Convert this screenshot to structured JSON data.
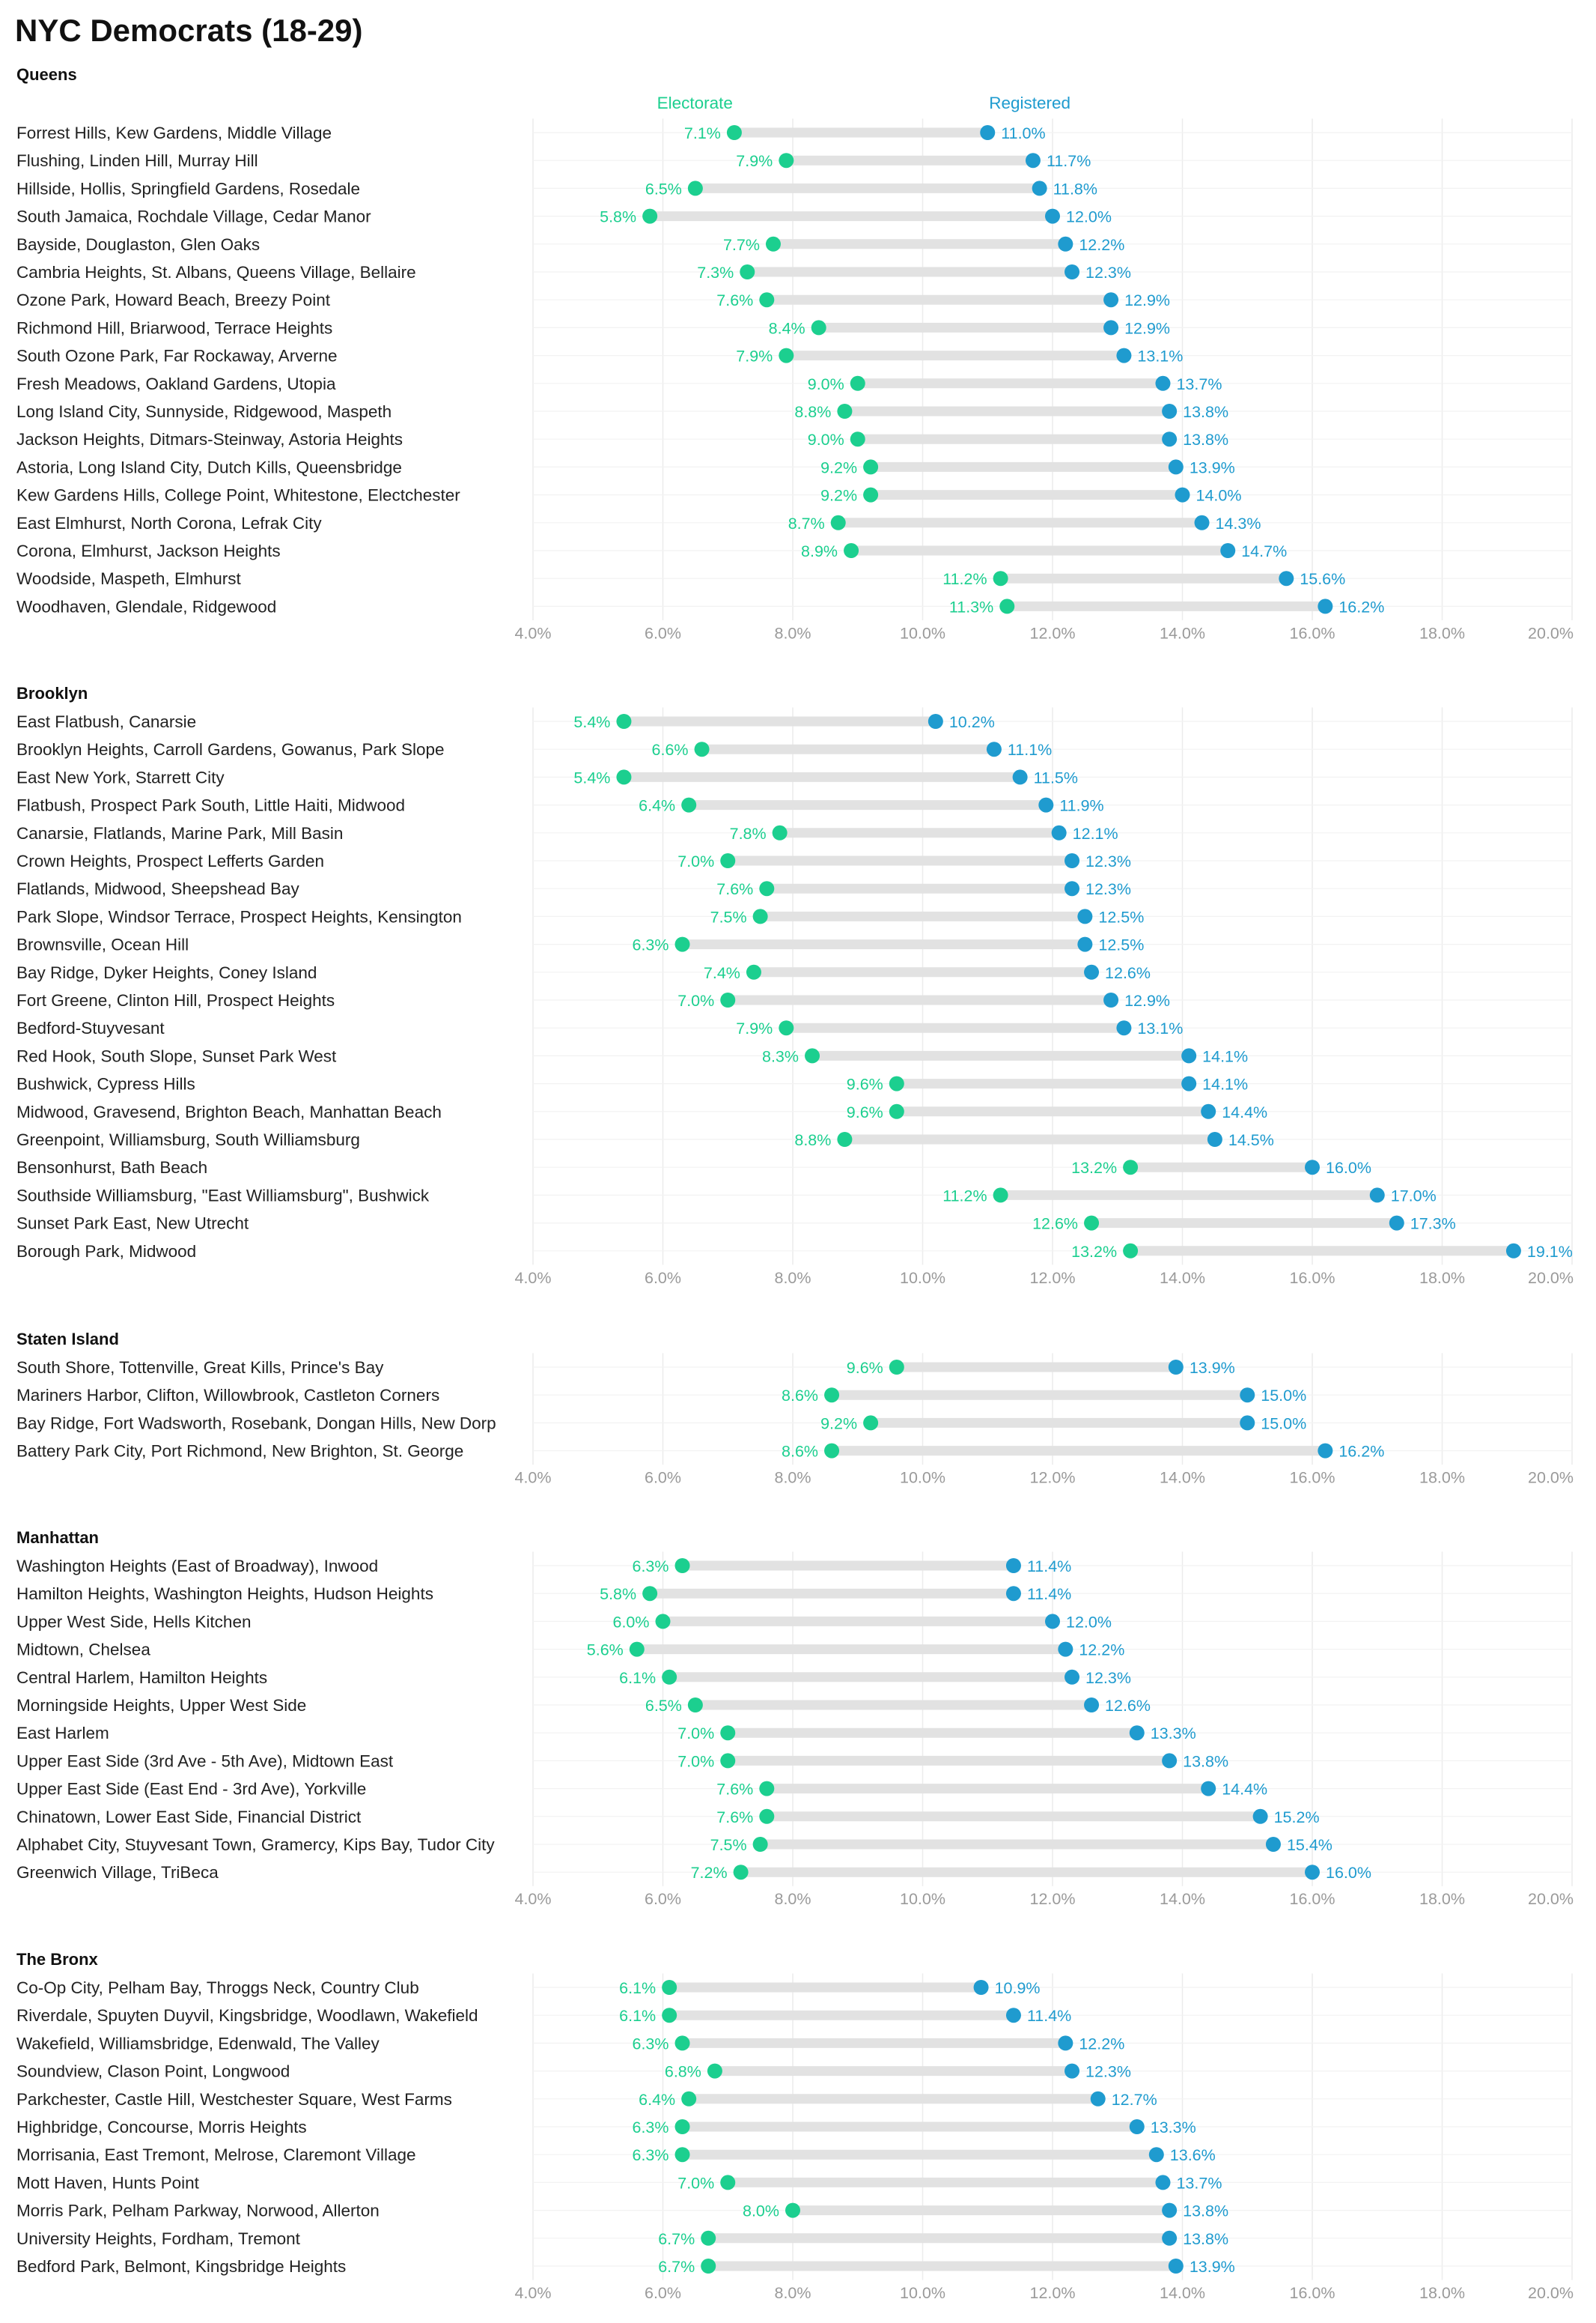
{
  "title": "NYC Democrats (18-29)",
  "legend": {
    "electorate": "Electorate",
    "registered": "Registered"
  },
  "colors": {
    "electorate": "#1ccf8f",
    "registered": "#1f9bcf",
    "bar": "#e2e2e2",
    "grid": "#ececec"
  },
  "chart_data": {
    "type": "dumbbell",
    "xlim": [
      4,
      20
    ],
    "ticks": [
      "4.0%",
      "6.0%",
      "8.0%",
      "10.0%",
      "12.0%",
      "14.0%",
      "16.0%",
      "18.0%",
      "20.0%"
    ],
    "panels": [
      {
        "name": "Queens",
        "rows": [
          {
            "label": "Forrest Hills, Kew Gardens, Middle Village",
            "electorate": 7.1,
            "registered": 11.0,
            "electorate_label": "7.1%",
            "registered_label": "11.0%"
          },
          {
            "label": "Flushing, Linden Hill, Murray Hill",
            "electorate": 7.9,
            "registered": 11.7,
            "electorate_label": "7.9%",
            "registered_label": "11.7%"
          },
          {
            "label": "Hillside, Hollis, Springfield Gardens, Rosedale",
            "electorate": 6.5,
            "registered": 11.8,
            "electorate_label": "6.5%",
            "registered_label": "11.8%"
          },
          {
            "label": "South Jamaica, Rochdale Village, Cedar Manor",
            "electorate": 5.8,
            "registered": 12.0,
            "electorate_label": "5.8%",
            "registered_label": "12.0%"
          },
          {
            "label": "Bayside, Douglaston, Glen Oaks",
            "electorate": 7.7,
            "registered": 12.2,
            "electorate_label": "7.7%",
            "registered_label": "12.2%"
          },
          {
            "label": "Cambria Heights, St. Albans, Queens Village, Bellaire",
            "electorate": 7.3,
            "registered": 12.3,
            "electorate_label": "7.3%",
            "registered_label": "12.3%"
          },
          {
            "label": "Ozone Park, Howard Beach, Breezy Point",
            "electorate": 7.6,
            "registered": 12.9,
            "electorate_label": "7.6%",
            "registered_label": "12.9%"
          },
          {
            "label": "Richmond Hill, Briarwood, Terrace Heights",
            "electorate": 8.4,
            "registered": 12.9,
            "electorate_label": "8.4%",
            "registered_label": "12.9%"
          },
          {
            "label": "South Ozone Park, Far Rockaway, Arverne",
            "electorate": 7.9,
            "registered": 13.1,
            "electorate_label": "7.9%",
            "registered_label": "13.1%"
          },
          {
            "label": "Fresh Meadows, Oakland Gardens, Utopia",
            "electorate": 9.0,
            "registered": 13.7,
            "electorate_label": "9.0%",
            "registered_label": "13.7%"
          },
          {
            "label": "Long Island City, Sunnyside, Ridgewood, Maspeth",
            "electorate": 8.8,
            "registered": 13.8,
            "electorate_label": "8.8%",
            "registered_label": "13.8%"
          },
          {
            "label": "Jackson Heights, Ditmars-Steinway, Astoria Heights",
            "electorate": 9.0,
            "registered": 13.8,
            "electorate_label": "9.0%",
            "registered_label": "13.8%"
          },
          {
            "label": "Astoria, Long Island City, Dutch Kills, Queensbridge",
            "electorate": 9.2,
            "registered": 13.9,
            "electorate_label": "9.2%",
            "registered_label": "13.9%"
          },
          {
            "label": "Kew Gardens Hills, College Point, Whitestone, Electchester",
            "electorate": 9.2,
            "registered": 14.0,
            "electorate_label": "9.2%",
            "registered_label": "14.0%"
          },
          {
            "label": "East Elmhurst, North Corona, Lefrak City",
            "electorate": 8.7,
            "registered": 14.3,
            "electorate_label": "8.7%",
            "registered_label": "14.3%"
          },
          {
            "label": "Corona, Elmhurst, Jackson Heights",
            "electorate": 8.9,
            "registered": 14.7,
            "electorate_label": "8.9%",
            "registered_label": "14.7%"
          },
          {
            "label": "Woodside, Maspeth, Elmhurst",
            "electorate": 11.2,
            "registered": 15.6,
            "electorate_label": "11.2%",
            "registered_label": "15.6%"
          },
          {
            "label": "Woodhaven, Glendale, Ridgewood",
            "electorate": 11.3,
            "registered": 16.2,
            "electorate_label": "11.3%",
            "registered_label": "16.2%"
          }
        ]
      },
      {
        "name": "Brooklyn",
        "rows": [
          {
            "label": "East Flatbush, Canarsie",
            "electorate": 5.4,
            "registered": 10.2,
            "electorate_label": "5.4%",
            "registered_label": "10.2%"
          },
          {
            "label": "Brooklyn Heights, Carroll Gardens, Gowanus, Park Slope",
            "electorate": 6.6,
            "registered": 11.1,
            "electorate_label": "6.6%",
            "registered_label": "11.1%"
          },
          {
            "label": "East New York, Starrett City",
            "electorate": 5.4,
            "registered": 11.5,
            "electorate_label": "5.4%",
            "registered_label": "11.5%"
          },
          {
            "label": "Flatbush, Prospect Park South, Little Haiti, Midwood",
            "electorate": 6.4,
            "registered": 11.9,
            "electorate_label": "6.4%",
            "registered_label": "11.9%"
          },
          {
            "label": "Canarsie, Flatlands, Marine Park, Mill Basin",
            "electorate": 7.8,
            "registered": 12.1,
            "electorate_label": "7.8%",
            "registered_label": "12.1%"
          },
          {
            "label": "Crown Heights, Prospect Lefferts Garden",
            "electorate": 7.0,
            "registered": 12.3,
            "electorate_label": "7.0%",
            "registered_label": "12.3%"
          },
          {
            "label": "Flatlands, Midwood, Sheepshead Bay",
            "electorate": 7.6,
            "registered": 12.3,
            "electorate_label": "7.6%",
            "registered_label": "12.3%"
          },
          {
            "label": "Park Slope, Windsor Terrace, Prospect Heights, Kensington",
            "electorate": 7.5,
            "registered": 12.5,
            "electorate_label": "7.5%",
            "registered_label": "12.5%"
          },
          {
            "label": "Brownsville, Ocean Hill",
            "electorate": 6.3,
            "registered": 12.5,
            "electorate_label": "6.3%",
            "registered_label": "12.5%"
          },
          {
            "label": "Bay Ridge, Dyker Heights, Coney Island",
            "electorate": 7.4,
            "registered": 12.6,
            "electorate_label": "7.4%",
            "registered_label": "12.6%"
          },
          {
            "label": "Fort Greene, Clinton Hill, Prospect Heights",
            "electorate": 7.0,
            "registered": 12.9,
            "electorate_label": "7.0%",
            "registered_label": "12.9%"
          },
          {
            "label": "Bedford-Stuyvesant",
            "electorate": 7.9,
            "registered": 13.1,
            "electorate_label": "7.9%",
            "registered_label": "13.1%"
          },
          {
            "label": "Red Hook, South Slope, Sunset Park West",
            "electorate": 8.3,
            "registered": 14.1,
            "electorate_label": "8.3%",
            "registered_label": "14.1%"
          },
          {
            "label": "Bushwick, Cypress Hills",
            "electorate": 9.6,
            "registered": 14.1,
            "electorate_label": "9.6%",
            "registered_label": "14.1%"
          },
          {
            "label": "Midwood, Gravesend, Brighton Beach, Manhattan Beach",
            "electorate": 9.6,
            "registered": 14.4,
            "electorate_label": "9.6%",
            "registered_label": "14.4%"
          },
          {
            "label": "Greenpoint, Williamsburg, South Williamsburg",
            "electorate": 8.8,
            "registered": 14.5,
            "electorate_label": "8.8%",
            "registered_label": "14.5%"
          },
          {
            "label": "Bensonhurst, Bath Beach",
            "electorate": 13.2,
            "registered": 16.0,
            "electorate_label": "13.2%",
            "registered_label": "16.0%"
          },
          {
            "label": "Southside Williamsburg, \"East Williamsburg\", Bushwick",
            "electorate": 11.2,
            "registered": 17.0,
            "electorate_label": "11.2%",
            "registered_label": "17.0%"
          },
          {
            "label": "Sunset Park East, New Utrecht",
            "electorate": 12.6,
            "registered": 17.3,
            "electorate_label": "12.6%",
            "registered_label": "17.3%"
          },
          {
            "label": "Borough Park, Midwood",
            "electorate": 13.2,
            "registered": 19.1,
            "electorate_label": "13.2%",
            "registered_label": "19.1%"
          }
        ]
      },
      {
        "name": "Staten Island",
        "rows": [
          {
            "label": "South Shore, Tottenville, Great Kills, Prince's Bay",
            "electorate": 9.6,
            "registered": 13.9,
            "electorate_label": "9.6%",
            "registered_label": "13.9%"
          },
          {
            "label": "Mariners Harbor, Clifton, Willowbrook, Castleton Corners",
            "electorate": 8.6,
            "registered": 15.0,
            "electorate_label": "8.6%",
            "registered_label": "15.0%"
          },
          {
            "label": "Bay Ridge, Fort Wadsworth, Rosebank, Dongan Hills, New Dorp",
            "electorate": 9.2,
            "registered": 15.0,
            "electorate_label": "9.2%",
            "registered_label": "15.0%"
          },
          {
            "label": "Battery Park City, Port Richmond, New Brighton, St. George",
            "electorate": 8.6,
            "registered": 16.2,
            "electorate_label": "8.6%",
            "registered_label": "16.2%"
          }
        ]
      },
      {
        "name": "Manhattan",
        "rows": [
          {
            "label": "Washington Heights (East of Broadway), Inwood",
            "electorate": 6.3,
            "registered": 11.4,
            "electorate_label": "6.3%",
            "registered_label": "11.4%"
          },
          {
            "label": "Hamilton Heights, Washington Heights, Hudson Heights",
            "electorate": 5.8,
            "registered": 11.4,
            "electorate_label": "5.8%",
            "registered_label": "11.4%"
          },
          {
            "label": "Upper West Side, Hells Kitchen",
            "electorate": 6.0,
            "registered": 12.0,
            "electorate_label": "6.0%",
            "registered_label": "12.0%"
          },
          {
            "label": "Midtown, Chelsea",
            "electorate": 5.6,
            "registered": 12.2,
            "electorate_label": "5.6%",
            "registered_label": "12.2%"
          },
          {
            "label": "Central Harlem, Hamilton Heights",
            "electorate": 6.1,
            "registered": 12.3,
            "electorate_label": "6.1%",
            "registered_label": "12.3%"
          },
          {
            "label": "Morningside Heights, Upper West Side",
            "electorate": 6.5,
            "registered": 12.6,
            "electorate_label": "6.5%",
            "registered_label": "12.6%"
          },
          {
            "label": "East Harlem",
            "electorate": 7.0,
            "registered": 13.3,
            "electorate_label": "7.0%",
            "registered_label": "13.3%"
          },
          {
            "label": "Upper East Side (3rd Ave - 5th Ave), Midtown East",
            "electorate": 7.0,
            "registered": 13.8,
            "electorate_label": "7.0%",
            "registered_label": "13.8%"
          },
          {
            "label": "Upper East Side (East End - 3rd Ave), Yorkville",
            "electorate": 7.6,
            "registered": 14.4,
            "electorate_label": "7.6%",
            "registered_label": "14.4%"
          },
          {
            "label": "Chinatown, Lower East Side, Financial District",
            "electorate": 7.6,
            "registered": 15.2,
            "electorate_label": "7.6%",
            "registered_label": "15.2%"
          },
          {
            "label": "Alphabet City, Stuyvesant Town, Gramercy, Kips Bay, Tudor City",
            "electorate": 7.5,
            "registered": 15.4,
            "electorate_label": "7.5%",
            "registered_label": "15.4%"
          },
          {
            "label": "Greenwich Village, TriBeca",
            "electorate": 7.2,
            "registered": 16.0,
            "electorate_label": "7.2%",
            "registered_label": "16.0%"
          }
        ]
      },
      {
        "name": "The Bronx",
        "rows": [
          {
            "label": "Co-Op City, Pelham Bay, Throggs Neck, Country Club",
            "electorate": 6.1,
            "registered": 10.9,
            "electorate_label": "6.1%",
            "registered_label": "10.9%"
          },
          {
            "label": "Riverdale, Spuyten Duyvil, Kingsbridge, Woodlawn, Wakefield",
            "electorate": 6.1,
            "registered": 11.4,
            "electorate_label": "6.1%",
            "registered_label": "11.4%"
          },
          {
            "label": "Wakefield, Williamsbridge, Edenwald, The Valley",
            "electorate": 6.3,
            "registered": 12.2,
            "electorate_label": "6.3%",
            "registered_label": "12.2%"
          },
          {
            "label": "Soundview, Clason Point, Longwood",
            "electorate": 6.8,
            "registered": 12.3,
            "electorate_label": "6.8%",
            "registered_label": "12.3%"
          },
          {
            "label": "Parkchester, Castle Hill, Westchester Square, West Farms",
            "electorate": 6.4,
            "registered": 12.7,
            "electorate_label": "6.4%",
            "registered_label": "12.7%"
          },
          {
            "label": "Highbridge, Concourse, Morris Heights",
            "electorate": 6.3,
            "registered": 13.3,
            "electorate_label": "6.3%",
            "registered_label": "13.3%"
          },
          {
            "label": "Morrisania, East Tremont, Melrose, Claremont Village",
            "electorate": 6.3,
            "registered": 13.6,
            "electorate_label": "6.3%",
            "registered_label": "13.6%"
          },
          {
            "label": "Mott Haven, Hunts Point",
            "electorate": 7.0,
            "registered": 13.7,
            "electorate_label": "7.0%",
            "registered_label": "13.7%"
          },
          {
            "label": "Morris Park, Pelham Parkway, Norwood, Allerton",
            "electorate": 8.0,
            "registered": 13.8,
            "electorate_label": "8.0%",
            "registered_label": "13.8%"
          },
          {
            "label": "University Heights, Fordham, Tremont",
            "electorate": 6.7,
            "registered": 13.8,
            "electorate_label": "6.7%",
            "registered_label": "13.8%"
          },
          {
            "label": "Bedford Park, Belmont, Kingsbridge Heights",
            "electorate": 6.7,
            "registered": 13.9,
            "electorate_label": "6.7%",
            "registered_label": "13.9%"
          }
        ]
      }
    ]
  }
}
